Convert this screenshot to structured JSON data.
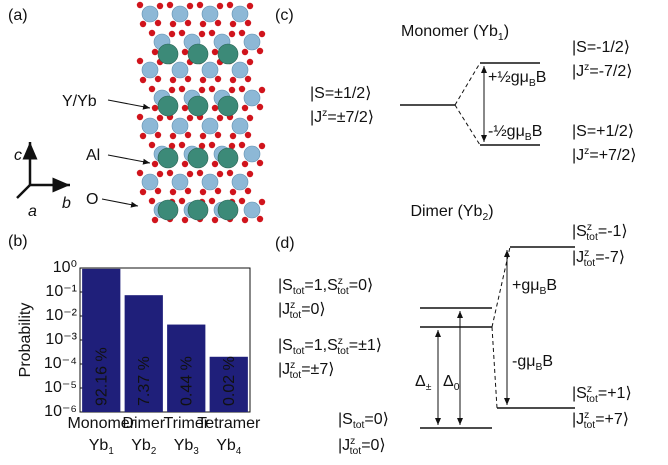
{
  "panels": {
    "a": {
      "label": "(a)",
      "atoms": [
        "Y/Yb",
        "Al",
        "O"
      ],
      "axes": {
        "c": "c",
        "a": "a",
        "b": "b"
      }
    },
    "c": {
      "label": "(c)",
      "title": [
        "Monomer (Yb",
        {
          "sub": "1"
        },
        ")"
      ],
      "ground": [
        "|S=±1/2⟩",
        [
          "|J",
          {
            "sup": "z"
          },
          "=±7/2⟩"
        ]
      ],
      "upper": [
        "|S=-1/2⟩",
        [
          "|J",
          {
            "sup": "z"
          },
          "=-7/2⟩"
        ]
      ],
      "lower": [
        "|S=+1/2⟩",
        [
          "|J",
          {
            "sup": "z"
          },
          "=+7/2⟩"
        ]
      ],
      "split_up": [
        "+½gμ",
        {
          "sub": "B"
        },
        "B"
      ],
      "split_down": [
        "-½gμ",
        {
          "sub": "B"
        },
        "B"
      ]
    },
    "d": {
      "label": "(d)",
      "title": [
        "Dimer (Yb",
        {
          "sub": "2"
        },
        ")"
      ],
      "upper": [
        [
          "|S",
          {
            "sup": "z",
            "sub": "tot"
          },
          "=-1⟩"
        ],
        [
          "|J",
          {
            "sup": "z",
            "sub": "tot"
          },
          "=-7⟩"
        ]
      ],
      "lower": [
        [
          "|S",
          {
            "sup": "z",
            "sub": "tot"
          },
          "=+1⟩"
        ],
        [
          "|J",
          {
            "sup": "z",
            "sub": "tot"
          },
          "=+7⟩"
        ]
      ],
      "triplet0": [
        [
          "|S",
          {
            "sub": "tot"
          },
          "=1,S",
          {
            "sup": "z",
            "sub": "tot"
          },
          "=0⟩"
        ],
        [
          "|J",
          {
            "sup": "z",
            "sub": "tot"
          },
          "=0⟩"
        ]
      ],
      "triplet1": [
        [
          "|S",
          {
            "sub": "tot"
          },
          "=1,S",
          {
            "sup": "z",
            "sub": "tot"
          },
          "=±1⟩"
        ],
        [
          "|J",
          {
            "sup": "z",
            "sub": "tot"
          },
          "=±7⟩"
        ]
      ],
      "singlet": [
        [
          "|S",
          {
            "sub": "tot"
          },
          "=0⟩"
        ],
        [
          "|J",
          {
            "sup": "z",
            "sub": "tot"
          },
          "=0⟩"
        ]
      ],
      "split_up": [
        "+gμ",
        {
          "sub": "B"
        },
        "B"
      ],
      "split_down": [
        "-gμ",
        {
          "sub": "B"
        },
        "B"
      ],
      "delta_pm": [
        "Δ",
        {
          "sub": "±"
        }
      ],
      "delta_0": [
        "Δ",
        {
          "sub": "0"
        }
      ]
    }
  },
  "chart_data": {
    "type": "bar",
    "panel_label": "(b)",
    "ylabel": "Probability",
    "categories": [
      "Monomer",
      "Dimer",
      "Trimer",
      "Tetramer"
    ],
    "sublabels": [
      [
        "Yb",
        {
          "sub": "1"
        }
      ],
      [
        "Yb",
        {
          "sub": "2"
        }
      ],
      [
        "Yb",
        {
          "sub": "3"
        }
      ],
      [
        "Yb",
        {
          "sub": "4"
        }
      ]
    ],
    "values": [
      0.9216,
      0.0737,
      0.0044,
      0.0002
    ],
    "value_labels": [
      "92.16 %",
      "7.37 %",
      "0.44 %",
      "0.02 %"
    ],
    "color": "#1f1f7a",
    "log_scale": true,
    "ylim": [
      1e-06,
      1
    ],
    "yticks": [
      {
        "value": 1,
        "label": "10⁰"
      },
      {
        "value": 0.1,
        "label": "10⁻¹"
      },
      {
        "value": 0.01,
        "label": "10⁻²"
      },
      {
        "value": 0.001,
        "label": "10⁻³"
      },
      {
        "value": 0.0001,
        "label": "10⁻⁴"
      },
      {
        "value": 1e-05,
        "label": "10⁻⁵"
      },
      {
        "value": 1e-06,
        "label": "10⁻⁶"
      }
    ]
  }
}
